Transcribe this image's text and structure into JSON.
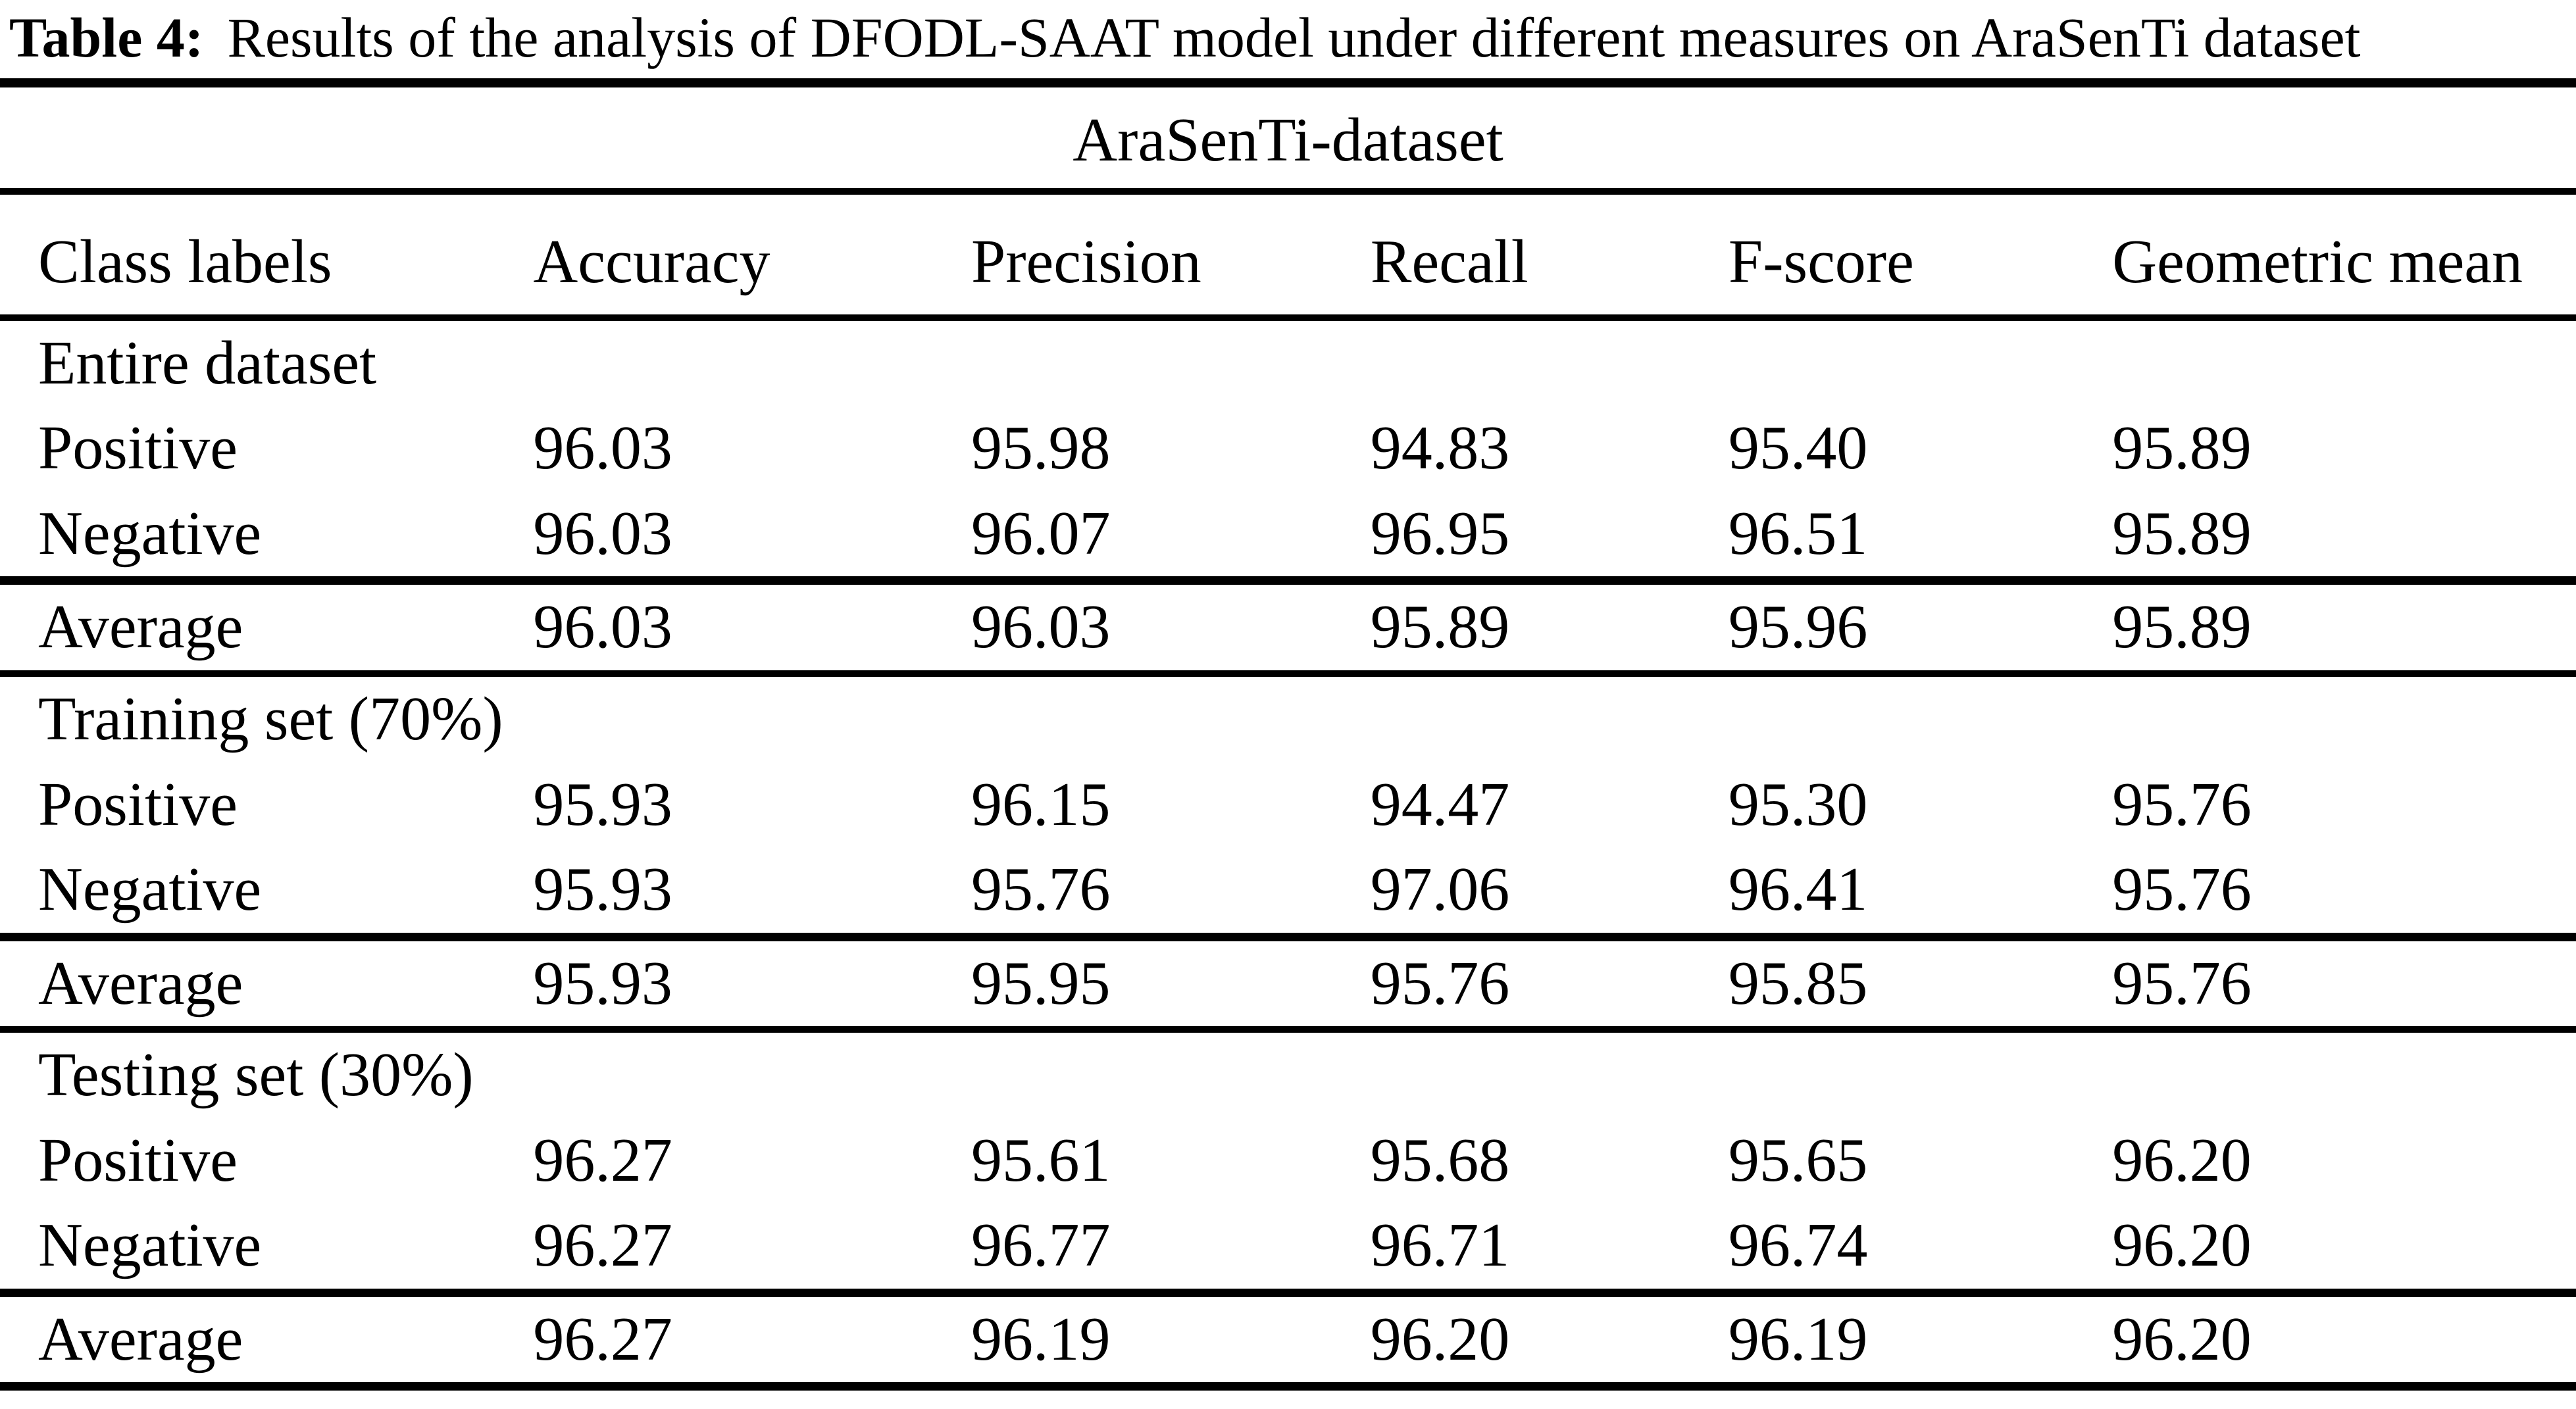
{
  "caption": {
    "label": "Table 4:",
    "text": "Results of the analysis of DFODL-SAAT model under different measures on AraSenTi dataset"
  },
  "colors": {
    "text": "#000000",
    "background": "#ffffff",
    "rules": "#000000"
  },
  "table": {
    "spanning_header": "AraSenTi-dataset",
    "columns": [
      "Class labels",
      "Accuracy",
      "Precision",
      "Recall",
      "F-score",
      "Geometric mean"
    ],
    "sections": [
      {
        "group_label": "Entire dataset",
        "rows": [
          {
            "label": "Positive",
            "values": [
              "96.03",
              "95.98",
              "94.83",
              "95.40",
              "95.89"
            ]
          },
          {
            "label": "Negative",
            "values": [
              "96.03",
              "96.07",
              "96.95",
              "96.51",
              "95.89"
            ]
          }
        ],
        "average": {
          "label": "Average",
          "values": [
            "96.03",
            "96.03",
            "95.89",
            "95.96",
            "95.89"
          ]
        }
      },
      {
        "group_label": "Training set (70%)",
        "rows": [
          {
            "label": "Positive",
            "values": [
              "95.93",
              "96.15",
              "94.47",
              "95.30",
              "95.76"
            ]
          },
          {
            "label": "Negative",
            "values": [
              "95.93",
              "95.76",
              "97.06",
              "96.41",
              "95.76"
            ]
          }
        ],
        "average": {
          "label": "Average",
          "values": [
            "95.93",
            "95.95",
            "95.76",
            "95.85",
            "95.76"
          ]
        }
      },
      {
        "group_label": "Testing set (30%)",
        "rows": [
          {
            "label": "Positive",
            "values": [
              "96.27",
              "95.61",
              "95.68",
              "95.65",
              "96.20"
            ]
          },
          {
            "label": "Negative",
            "values": [
              "96.27",
              "96.77",
              "96.71",
              "96.74",
              "96.20"
            ]
          }
        ],
        "average": {
          "label": "Average",
          "values": [
            "96.27",
            "96.19",
            "96.20",
            "96.19",
            "96.20"
          ]
        }
      }
    ]
  }
}
